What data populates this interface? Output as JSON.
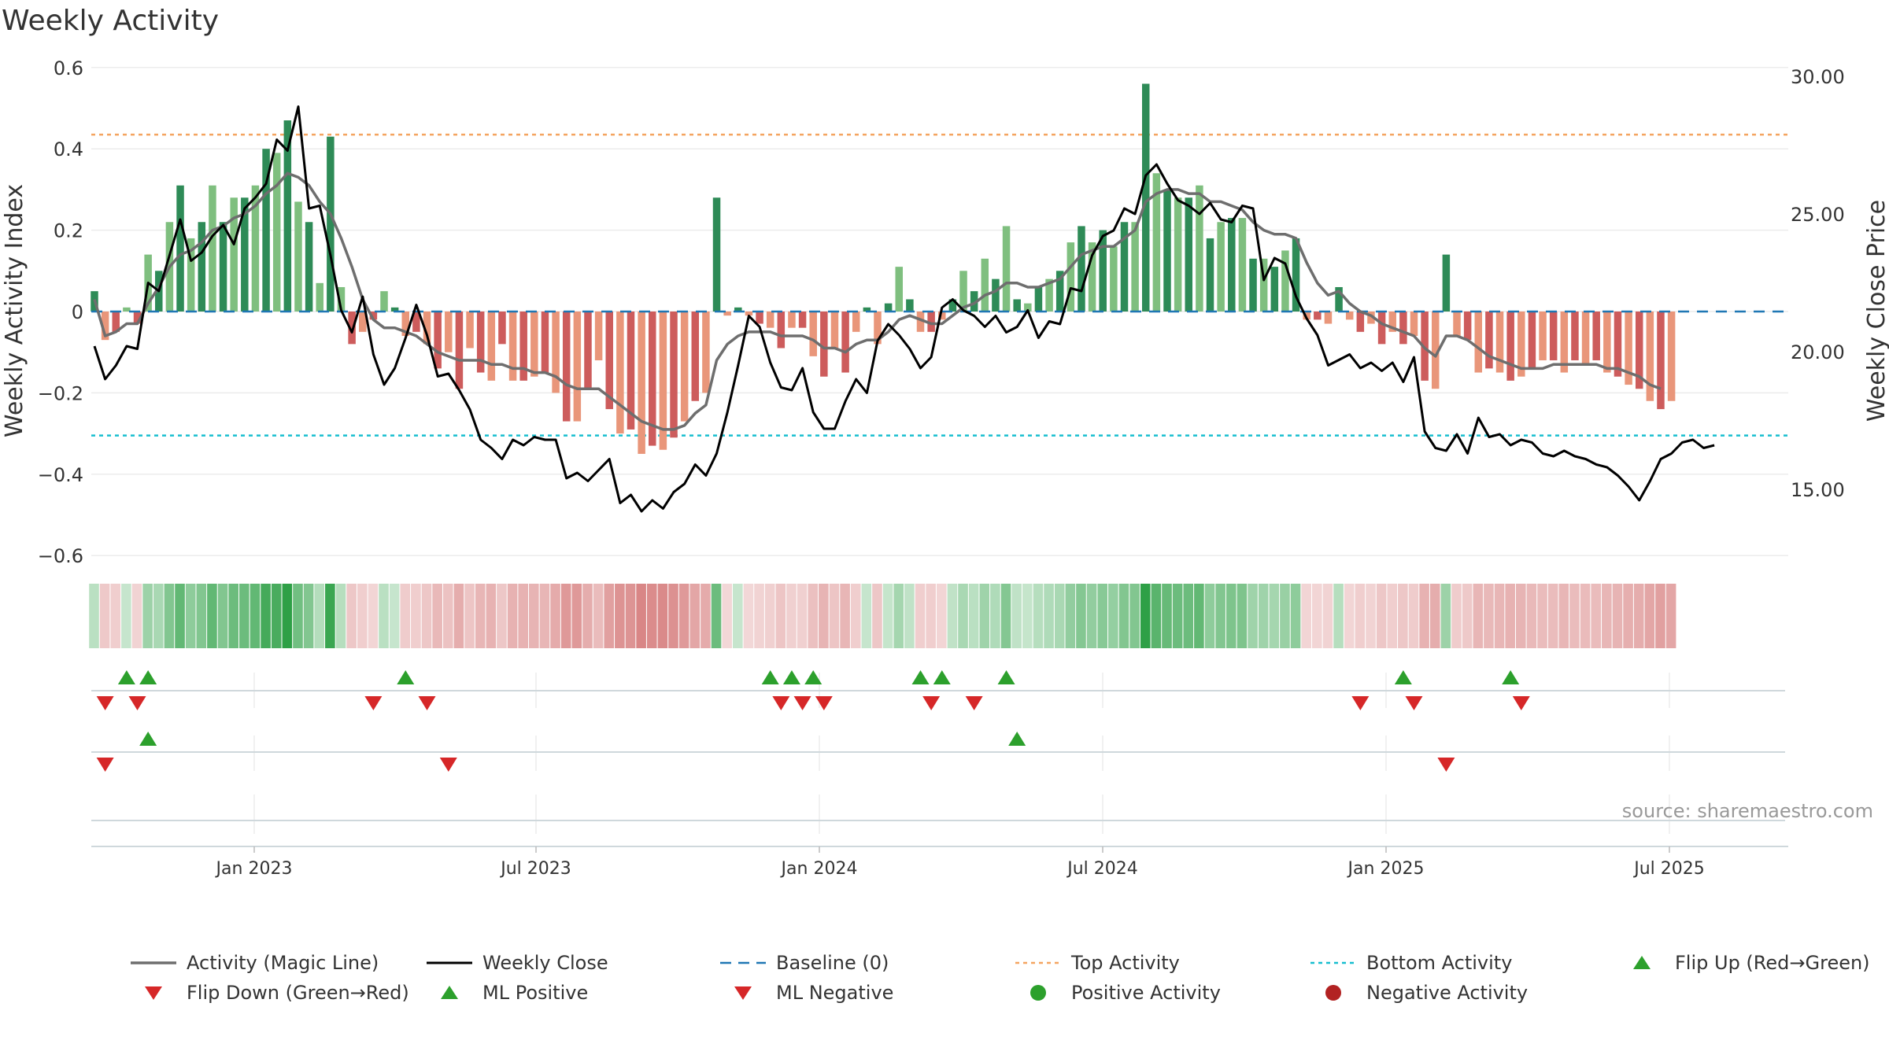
{
  "title": "Weekly Activity",
  "source": "source: sharemaestro.com",
  "colors": {
    "pos_dark": "#2e8b57",
    "pos_light": "#7fbf7f",
    "neg_dark": "#cd5c5c",
    "neg_light": "#e9967a",
    "magic": "#6e6e6e",
    "close": "#000000",
    "baseline": "#1f77b4",
    "top": "#f4a460",
    "bottom": "#17becf",
    "flip_up": "#2ca02c",
    "flip_down": "#d62728",
    "pos_dot": "#2ca02c",
    "neg_dot": "#b22222"
  },
  "chart_data": {
    "type": "bar",
    "start_date": "2022-10-10",
    "x_ticks": [
      "Jan 2023",
      "Jul 2023",
      "Jan 2024",
      "Jul 2024",
      "Jan 2025",
      "Jul 2025"
    ],
    "y_left": {
      "label": "Weekly Activity Index",
      "ylim": [
        -0.66,
        0.6
      ],
      "ticks": [
        "0.6",
        "0.4",
        "0.2",
        "0",
        "−0.2",
        "−0.4",
        "−0.6"
      ]
    },
    "y_right": {
      "label": "Weekly Close Price",
      "ylim": [
        12.0,
        30.5
      ],
      "ticks": [
        "30.00",
        "25.00",
        "20.00",
        "15.00"
      ]
    },
    "top_activity": 0.435,
    "bottom_activity": -0.305,
    "activity": [
      0.05,
      -0.07,
      -0.05,
      0.01,
      -0.03,
      0.14,
      0.1,
      0.22,
      0.31,
      0.18,
      0.22,
      0.31,
      0.22,
      0.28,
      0.28,
      0.31,
      0.4,
      0.39,
      0.47,
      0.27,
      0.22,
      0.07,
      0.43,
      0.06,
      -0.08,
      -0.05,
      -0.02,
      0.05,
      0.01,
      -0.06,
      -0.05,
      -0.08,
      -0.14,
      -0.1,
      -0.19,
      -0.09,
      -0.15,
      -0.17,
      -0.08,
      -0.17,
      -0.17,
      -0.16,
      -0.15,
      -0.2,
      -0.27,
      -0.27,
      -0.19,
      -0.12,
      -0.24,
      -0.3,
      -0.29,
      -0.35,
      -0.33,
      -0.34,
      -0.31,
      -0.27,
      -0.22,
      -0.2,
      0.28,
      -0.01,
      0.01,
      -0.01,
      -0.03,
      -0.04,
      -0.09,
      -0.04,
      -0.04,
      -0.11,
      -0.16,
      -0.09,
      -0.15,
      -0.05,
      0.01,
      -0.08,
      0.02,
      0.11,
      0.03,
      -0.05,
      -0.05,
      -0.02,
      0.03,
      0.1,
      0.05,
      0.13,
      0.08,
      0.21,
      0.03,
      0.02,
      0.06,
      0.08,
      0.1,
      0.17,
      0.21,
      0.17,
      0.2,
      0.16,
      0.22,
      0.22,
      0.56,
      0.34,
      0.3,
      0.28,
      0.28,
      0.31,
      0.18,
      0.22,
      0.23,
      0.23,
      0.13,
      0.13,
      0.11,
      0.15,
      0.18,
      -0.02,
      -0.02,
      -0.03,
      0.06,
      -0.02,
      -0.05,
      -0.03,
      -0.08,
      -0.05,
      -0.08,
      -0.06,
      -0.17,
      -0.19,
      0.14,
      -0.06,
      -0.07,
      -0.15,
      -0.14,
      -0.15,
      -0.17,
      -0.16,
      -0.14,
      -0.12,
      -0.12,
      -0.15,
      -0.12,
      -0.13,
      -0.12,
      -0.15,
      -0.16,
      -0.18,
      -0.19,
      -0.22,
      -0.24,
      -0.22
    ],
    "magic_line": [
      0.03,
      -0.06,
      -0.05,
      -0.03,
      -0.03,
      0.02,
      0.06,
      0.11,
      0.14,
      0.15,
      0.17,
      0.2,
      0.21,
      0.23,
      0.24,
      0.26,
      0.29,
      0.31,
      0.34,
      0.33,
      0.31,
      0.27,
      0.24,
      0.18,
      0.11,
      0.03,
      -0.02,
      -0.04,
      -0.04,
      -0.05,
      -0.06,
      -0.08,
      -0.1,
      -0.11,
      -0.12,
      -0.12,
      -0.12,
      -0.13,
      -0.13,
      -0.14,
      -0.14,
      -0.15,
      -0.15,
      -0.16,
      -0.18,
      -0.19,
      -0.19,
      -0.19,
      -0.21,
      -0.23,
      -0.25,
      -0.27,
      -0.28,
      -0.29,
      -0.29,
      -0.28,
      -0.25,
      -0.23,
      -0.12,
      -0.08,
      -0.06,
      -0.05,
      -0.05,
      -0.05,
      -0.06,
      -0.06,
      -0.06,
      -0.07,
      -0.09,
      -0.09,
      -0.1,
      -0.08,
      -0.07,
      -0.07,
      -0.05,
      -0.02,
      -0.01,
      -0.02,
      -0.03,
      -0.03,
      -0.01,
      0.01,
      0.02,
      0.04,
      0.05,
      0.07,
      0.07,
      0.06,
      0.06,
      0.07,
      0.08,
      0.11,
      0.14,
      0.15,
      0.16,
      0.16,
      0.18,
      0.2,
      0.27,
      0.29,
      0.3,
      0.3,
      0.29,
      0.29,
      0.27,
      0.27,
      0.26,
      0.25,
      0.22,
      0.2,
      0.19,
      0.19,
      0.18,
      0.12,
      0.07,
      0.04,
      0.05,
      0.02,
      0,
      -0.01,
      -0.03,
      -0.04,
      -0.05,
      -0.06,
      -0.09,
      -0.11,
      -0.06,
      -0.06,
      -0.07,
      -0.09,
      -0.11,
      -0.12,
      -0.13,
      -0.14,
      -0.14,
      -0.14,
      -0.13,
      -0.13,
      -0.13,
      -0.13,
      -0.13,
      -0.14,
      -0.14,
      -0.15,
      -0.16,
      -0.18,
      -0.19
    ],
    "close": [
      20.2,
      19.0,
      19.5,
      20.2,
      20.1,
      22.5,
      22.2,
      23.5,
      24.8,
      23.3,
      23.6,
      24.2,
      24.6,
      23.9,
      25.2,
      25.6,
      26.1,
      27.7,
      27.3,
      28.9,
      25.2,
      25.3,
      23.5,
      21.5,
      20.7,
      22.0,
      19.9,
      18.8,
      19.4,
      20.5,
      21.7,
      20.6,
      19.1,
      19.2,
      18.6,
      17.9,
      16.8,
      16.5,
      16.1,
      16.8,
      16.6,
      16.9,
      16.8,
      16.8,
      15.4,
      15.6,
      15.3,
      15.7,
      16.1,
      14.5,
      14.8,
      14.2,
      14.6,
      14.3,
      14.9,
      15.2,
      15.9,
      15.5,
      16.3,
      17.8,
      19.5,
      21.3,
      20.9,
      19.6,
      18.7,
      18.6,
      19.4,
      17.8,
      17.2,
      17.2,
      18.2,
      19.0,
      18.5,
      20.4,
      21.0,
      20.6,
      20.1,
      19.4,
      19.8,
      21.6,
      21.9,
      21.5,
      21.3,
      20.9,
      21.3,
      20.7,
      20.9,
      21.5,
      20.5,
      21.1,
      21.0,
      22.3,
      22.2,
      23.5,
      24.2,
      24.4,
      25.2,
      25.0,
      26.4,
      26.8,
      26.1,
      25.5,
      25.3,
      25.0,
      25.4,
      24.8,
      24.7,
      25.3,
      25.2,
      22.6,
      23.4,
      23.2,
      22.0,
      21.2,
      20.6,
      19.5,
      19.7,
      19.9,
      19.4,
      19.6,
      19.3,
      19.6,
      18.9,
      19.8,
      17.1,
      16.5,
      16.4,
      17.0,
      16.3,
      17.6,
      16.9,
      17.0,
      16.6,
      16.8,
      16.7,
      16.3,
      16.2,
      16.4,
      16.2,
      16.1,
      15.9,
      15.8,
      15.5,
      15.1,
      14.6,
      15.3,
      16.1,
      16.3,
      16.7,
      16.8,
      16.5,
      16.6
    ],
    "flip_up": [
      3,
      5,
      29,
      63,
      65,
      67,
      77,
      79,
      85,
      122,
      132
    ],
    "flip_down": [
      1,
      4,
      26,
      31,
      64,
      66,
      68,
      78,
      82,
      118,
      123,
      133
    ],
    "ml_positive": [
      5,
      86
    ],
    "ml_negative": [
      1,
      33,
      126
    ]
  },
  "legend": [
    {
      "label": "Activity (Magic Line)",
      "icon": "line-solid-gray"
    },
    {
      "label": "Weekly Close",
      "icon": "line-solid-black"
    },
    {
      "label": "Baseline (0)",
      "icon": "line-dashed-blue"
    },
    {
      "label": "Top Activity",
      "icon": "line-dotted-orange"
    },
    {
      "label": "Bottom Activity",
      "icon": "line-dotted-cyan"
    },
    {
      "label": "Flip Up (Red→Green)",
      "icon": "triangle-up-green"
    },
    {
      "label": "Flip Down (Green→Red)",
      "icon": "triangle-down-red"
    },
    {
      "label": "ML Positive",
      "icon": "triangle-up-green"
    },
    {
      "label": "ML Negative",
      "icon": "triangle-down-red"
    },
    {
      "label": "Positive Activity",
      "icon": "dot-green"
    },
    {
      "label": "Negative Activity",
      "icon": "dot-red"
    }
  ]
}
